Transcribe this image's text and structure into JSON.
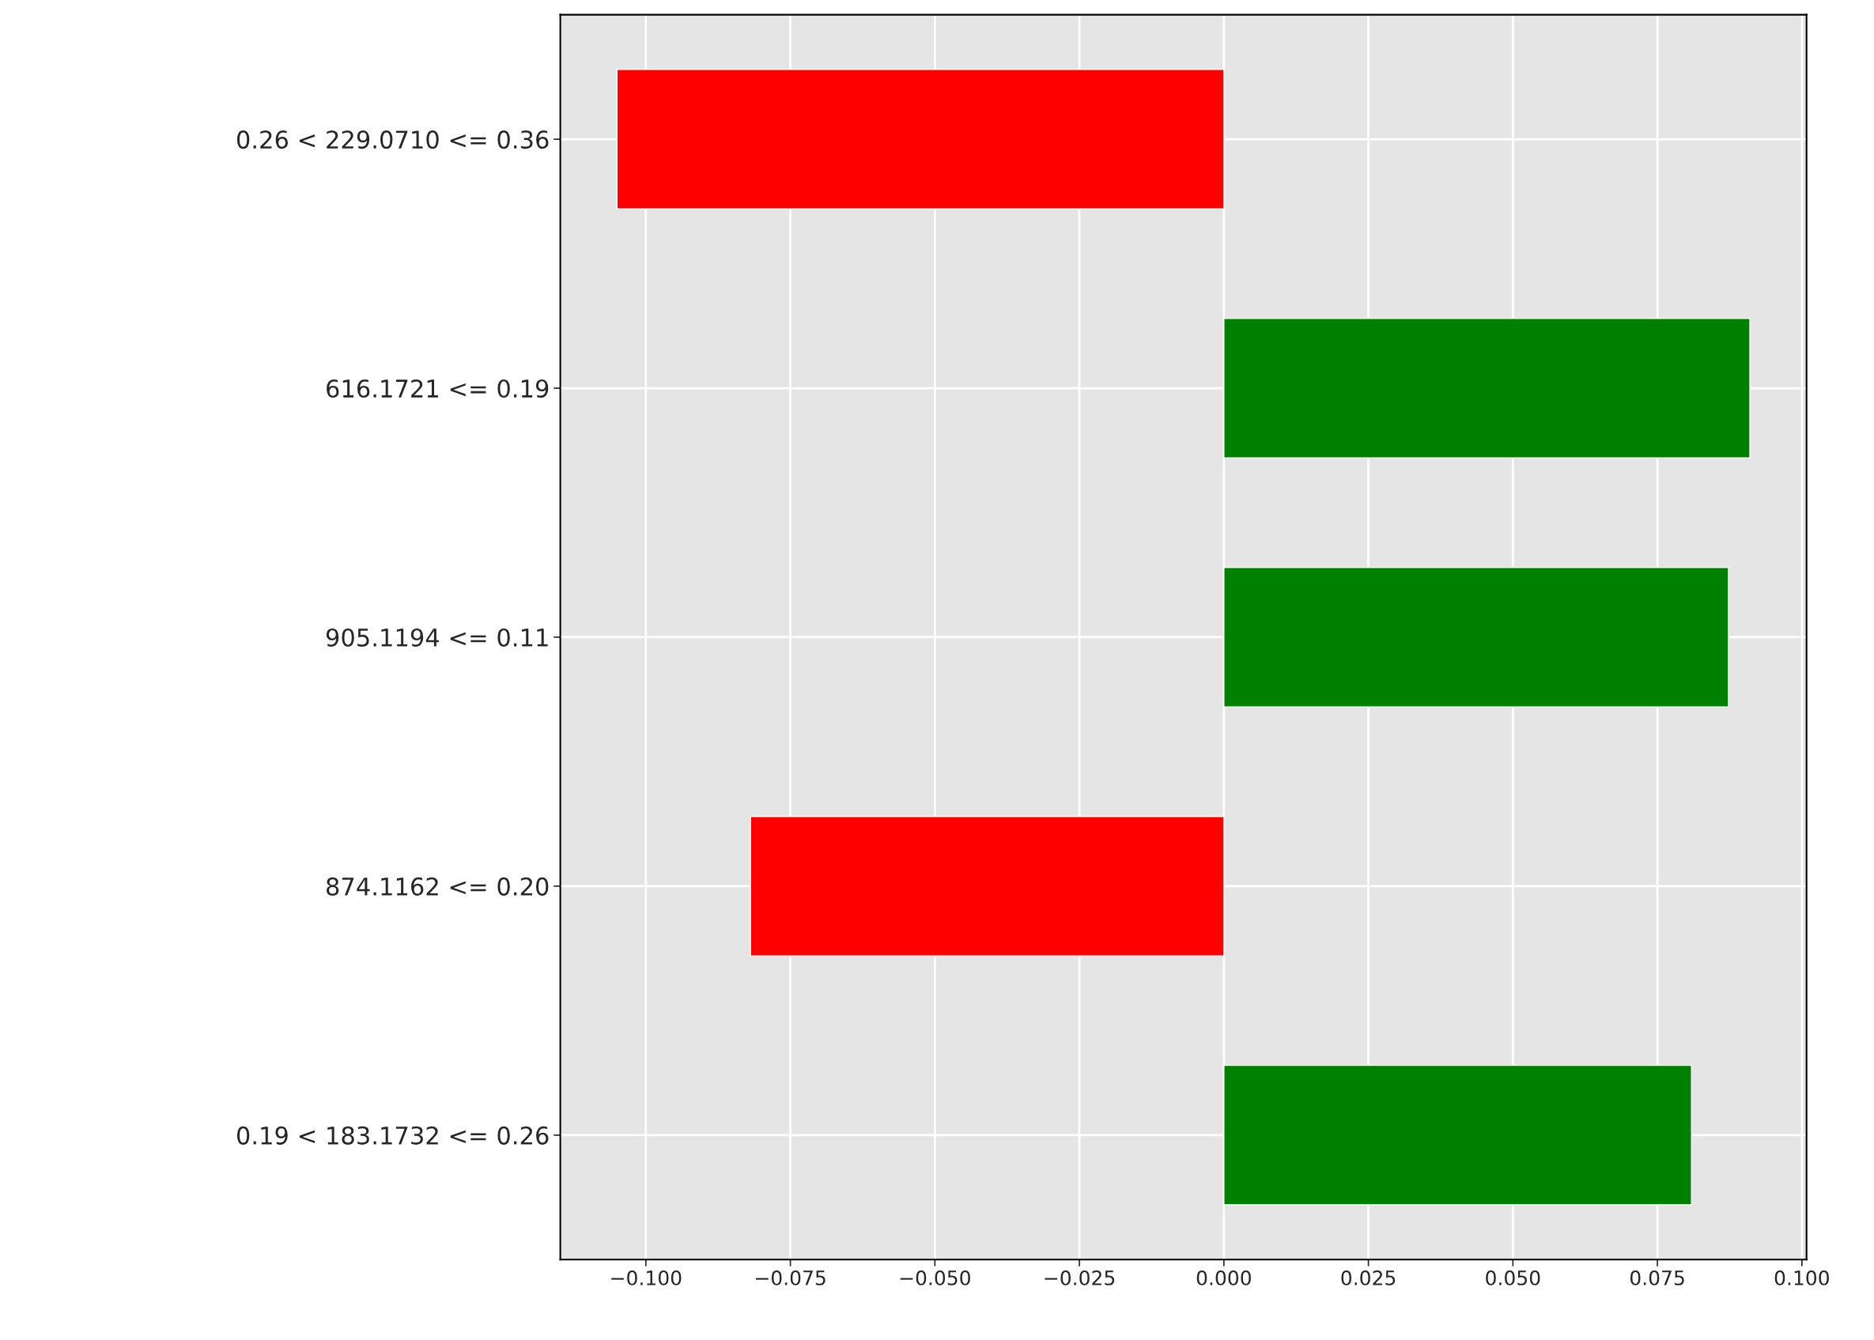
{
  "chart_data": {
    "type": "bar",
    "orientation": "horizontal",
    "categories": [
      "0.26 < 229.0710 <= 0.36",
      "616.1721 <= 0.19",
      "905.1194 <= 0.11",
      "874.1162 <= 0.20",
      "0.19 < 183.1732 <= 0.26"
    ],
    "values": [
      -0.105,
      0.091,
      0.0873,
      -0.0819,
      0.0809
    ],
    "colors": [
      "#ff0000",
      "#008000",
      "#008000",
      "#ff0000",
      "#008000"
    ],
    "xlim": [
      -0.1148,
      0.1008
    ],
    "xticks": [
      {
        "value": -0.1,
        "label": "−0.100"
      },
      {
        "value": -0.075,
        "label": "−0.075"
      },
      {
        "value": -0.05,
        "label": "−0.050"
      },
      {
        "value": -0.025,
        "label": "−0.025"
      },
      {
        "value": 0,
        "label": "0.000"
      },
      {
        "value": 0.025,
        "label": "0.025"
      },
      {
        "value": 0.05,
        "label": "0.050"
      },
      {
        "value": 0.075,
        "label": "0.075"
      },
      {
        "value": 0.1,
        "label": "0.100"
      }
    ],
    "grid": true
  }
}
